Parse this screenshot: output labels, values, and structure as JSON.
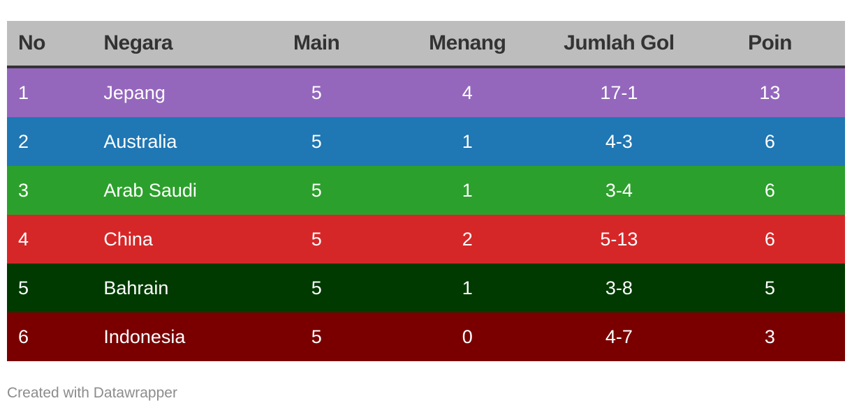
{
  "chart_data": {
    "type": "table",
    "columns": [
      "No",
      "Negara",
      "Main",
      "Menang",
      "Jumlah Gol",
      "Poin"
    ],
    "rows": [
      {
        "no": "1",
        "negara": "Jepang",
        "main": "5",
        "menang": "4",
        "gol": "17-1",
        "poin": "13",
        "color": "#9467bd"
      },
      {
        "no": "2",
        "negara": "Australia",
        "main": "5",
        "menang": "1",
        "gol": "4-3",
        "poin": "6",
        "color": "#1f77b4"
      },
      {
        "no": "3",
        "negara": "Arab Saudi",
        "main": "5",
        "menang": "1",
        "gol": "3-4",
        "poin": "6",
        "color": "#2ca02c"
      },
      {
        "no": "4",
        "negara": "China",
        "main": "5",
        "menang": "2",
        "gol": "5-13",
        "poin": "6",
        "color": "#d62728"
      },
      {
        "no": "5",
        "negara": "Bahrain",
        "main": "5",
        "menang": "1",
        "gol": "3-8",
        "poin": "5",
        "color": "#003a00"
      },
      {
        "no": "6",
        "negara": "Indonesia",
        "main": "5",
        "menang": "0",
        "gol": "4-7",
        "poin": "3",
        "color": "#7a0000"
      }
    ],
    "header_color": "#bdbdbd"
  },
  "footer": {
    "credit": "Created with Datawrapper"
  }
}
